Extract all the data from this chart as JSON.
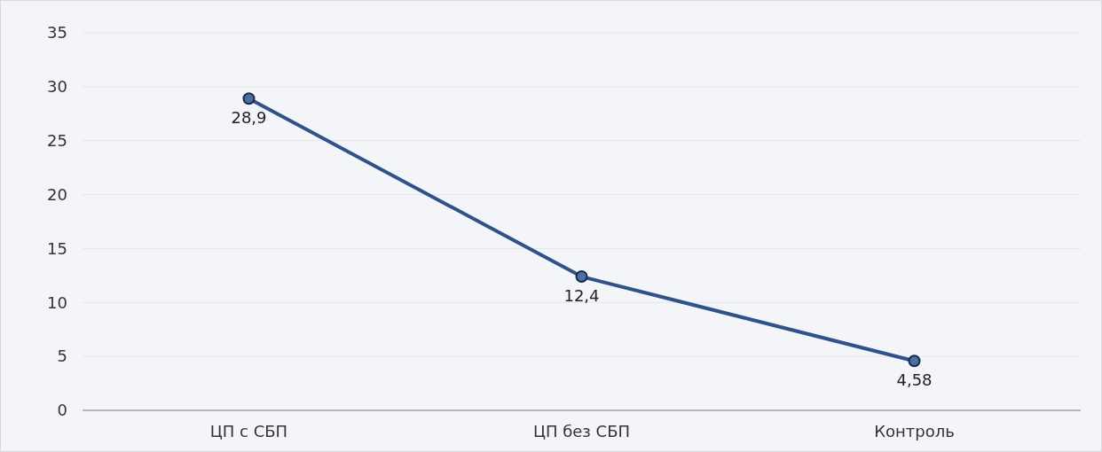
{
  "chart_data": {
    "type": "line",
    "categories": [
      "ЦП с СБП",
      "ЦП без СБП",
      "Контроль"
    ],
    "series": [
      {
        "color": "#2f5289",
        "values": [
          28.9,
          12.4,
          4.58
        ],
        "value_labels": [
          "28,9",
          "12,4",
          "4,58"
        ]
      }
    ],
    "ylim": [
      0,
      35
    ],
    "yticks": [
      0,
      5,
      10,
      15,
      20,
      25,
      30,
      35
    ],
    "grid": "y",
    "marker": "circle",
    "line_style": "solid"
  }
}
